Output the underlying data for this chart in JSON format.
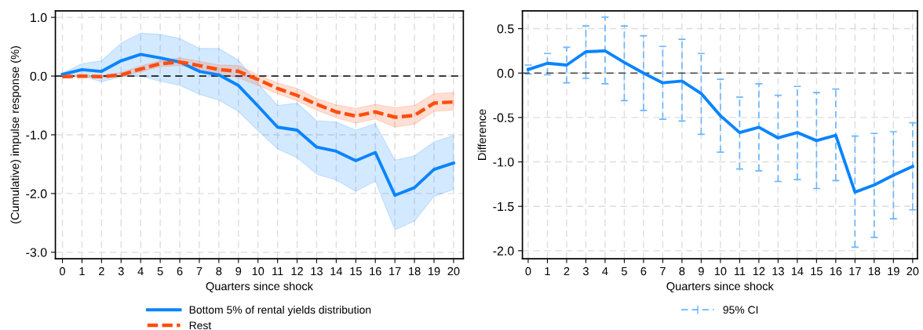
{
  "chart_data": [
    {
      "type": "line",
      "xlabel": "Quarters since shock",
      "ylabel": "(Cumulative) impulse response (%)",
      "x": [
        0,
        1,
        2,
        3,
        4,
        5,
        6,
        7,
        8,
        9,
        10,
        11,
        12,
        13,
        14,
        15,
        16,
        17,
        18,
        19,
        20
      ],
      "xlim": [
        -0.36,
        20.5
      ],
      "xticks": [
        0,
        1,
        2,
        3,
        4,
        5,
        6,
        7,
        8,
        9,
        10,
        11,
        12,
        13,
        14,
        15,
        16,
        17,
        18,
        19,
        20
      ],
      "ylim": [
        -3.11,
        1.11
      ],
      "yticks": [
        {
          "value": 1,
          "label": "1.0"
        },
        {
          "value": 0,
          "label": "0.0"
        },
        {
          "value": -1,
          "label": "-1.0"
        },
        {
          "value": -2,
          "label": "-2.0"
        },
        {
          "value": -3,
          "label": "-3.0"
        }
      ],
      "grid": true,
      "legend": "bottom",
      "ref_lines": [
        {
          "axis": "y",
          "value": 0,
          "color": "#000000",
          "line_style": "dashed"
        }
      ],
      "series": [
        {
          "name": "Bottom 5% of rental yields distribution",
          "color": "#0a84ff",
          "line_style": "solid",
          "values": [
            0.03,
            0.11,
            0.08,
            0.26,
            0.37,
            0.31,
            0.24,
            0.08,
            0.02,
            -0.16,
            -0.51,
            -0.87,
            -0.92,
            -1.21,
            -1.28,
            -1.44,
            -1.3,
            -2.03,
            -1.9,
            -1.59,
            -1.48
          ],
          "upper": [
            0.05,
            0.21,
            0.26,
            0.56,
            0.73,
            0.71,
            0.64,
            0.47,
            0.47,
            0.27,
            -0.13,
            -0.5,
            -0.46,
            -0.76,
            -0.78,
            -0.92,
            -0.81,
            -1.43,
            -1.36,
            -1.12,
            -1.01
          ],
          "lower": [
            -0.01,
            0.0,
            -0.1,
            -0.01,
            0.0,
            -0.09,
            -0.16,
            -0.31,
            -0.41,
            -0.6,
            -0.93,
            -1.24,
            -1.39,
            -1.67,
            -1.77,
            -1.96,
            -1.79,
            -2.62,
            -2.47,
            -2.05,
            -1.93
          ]
        },
        {
          "name": "Rest",
          "color": "#ff4d0d",
          "line_style": "dashed",
          "values": [
            -0.01,
            0.0,
            -0.01,
            0.02,
            0.12,
            0.21,
            0.24,
            0.18,
            0.11,
            0.08,
            -0.06,
            -0.21,
            -0.33,
            -0.48,
            -0.61,
            -0.68,
            -0.61,
            -0.7,
            -0.67,
            -0.46,
            -0.44
          ],
          "upper": [
            0.0,
            0.01,
            0.01,
            0.06,
            0.17,
            0.26,
            0.31,
            0.25,
            0.19,
            0.18,
            0.02,
            -0.12,
            -0.21,
            -0.38,
            -0.49,
            -0.55,
            -0.48,
            -0.54,
            -0.5,
            -0.3,
            -0.28
          ],
          "lower": [
            -0.02,
            -0.01,
            -0.03,
            -0.01,
            0.07,
            0.16,
            0.18,
            0.12,
            0.04,
            -0.03,
            -0.16,
            -0.3,
            -0.42,
            -0.58,
            -0.71,
            -0.8,
            -0.73,
            -0.87,
            -0.82,
            -0.6,
            -0.58
          ]
        }
      ]
    },
    {
      "type": "line",
      "xlabel": "Quarters since shock",
      "ylabel": "Difference",
      "x": [
        0,
        1,
        2,
        3,
        4,
        5,
        6,
        7,
        8,
        9,
        10,
        11,
        12,
        13,
        14,
        15,
        16,
        17,
        18,
        19,
        20
      ],
      "xlim": [
        -0.3,
        20.25
      ],
      "xticks": [
        0,
        1,
        2,
        3,
        4,
        5,
        6,
        7,
        8,
        9,
        10,
        11,
        12,
        13,
        14,
        15,
        16,
        17,
        18,
        19,
        20
      ],
      "ylim": [
        -2.09,
        0.7
      ],
      "yticks": [
        {
          "value": 0.5,
          "label": "0.5"
        },
        {
          "value": 0,
          "label": "0.0"
        },
        {
          "value": -0.5,
          "label": "-0.5"
        },
        {
          "value": -1,
          "label": "-1.0"
        },
        {
          "value": -1.5,
          "label": "-1.5"
        },
        {
          "value": -2,
          "label": "-2.0"
        }
      ],
      "grid": true,
      "legend": "bottom",
      "ref_lines": [
        {
          "axis": "y",
          "value": 0,
          "color": "#444444",
          "line_style": "dashed"
        }
      ],
      "series": [
        {
          "name": "95% CI",
          "color": "#0a84ff",
          "line_style": "solid",
          "values": [
            0.04,
            0.11,
            0.09,
            0.24,
            0.25,
            0.12,
            0.0,
            -0.11,
            -0.09,
            -0.23,
            -0.48,
            -0.67,
            -0.61,
            -0.73,
            -0.67,
            -0.76,
            -0.7,
            -1.34,
            -1.26,
            -1.15,
            -1.05
          ],
          "errors": [
            [
              -0.01,
              0.09
            ],
            [
              -0.02,
              0.22
            ],
            [
              -0.11,
              0.29
            ],
            [
              -0.06,
              0.53
            ],
            [
              -0.12,
              0.63
            ],
            [
              -0.31,
              0.53
            ],
            [
              -0.42,
              0.42
            ],
            [
              -0.52,
              0.3
            ],
            [
              -0.54,
              0.38
            ],
            [
              -0.69,
              0.22
            ],
            [
              -0.89,
              -0.07
            ],
            [
              -1.08,
              -0.27
            ],
            [
              -1.1,
              -0.12
            ],
            [
              -1.22,
              -0.25
            ],
            [
              -1.2,
              -0.15
            ],
            [
              -1.3,
              -0.22
            ],
            [
              -1.21,
              -0.18
            ],
            [
              -1.96,
              -0.71
            ],
            [
              -1.85,
              -0.68
            ],
            [
              -1.64,
              -0.66
            ],
            [
              -1.54,
              -0.56
            ]
          ]
        }
      ]
    }
  ]
}
